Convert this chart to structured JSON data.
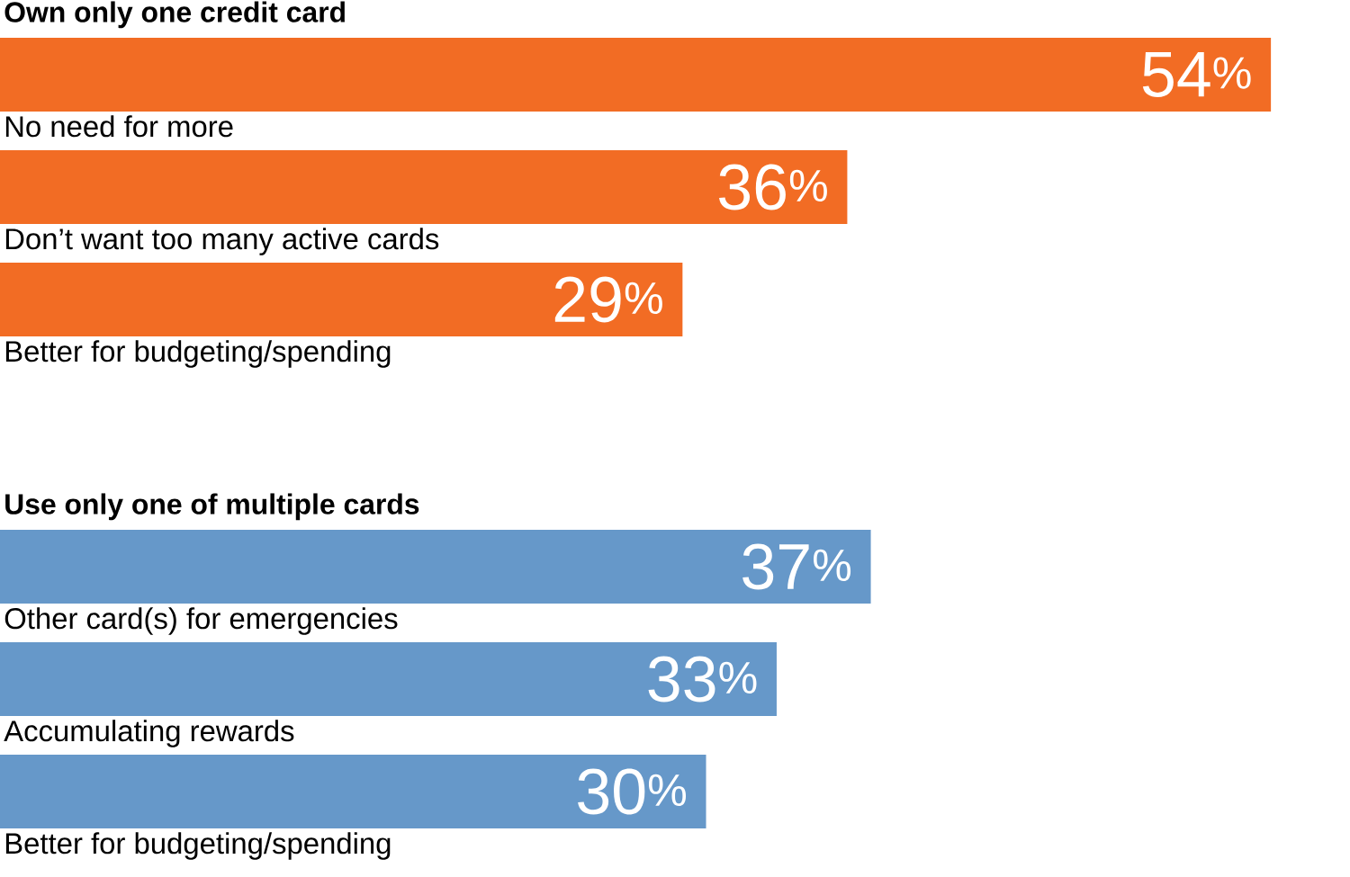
{
  "chart_data": [
    {
      "type": "bar",
      "orientation": "horizontal",
      "title": "Own only one credit card",
      "categories": [
        "No need for more",
        "Don’t want too many active cards",
        "Better for budgeting/spending"
      ],
      "values": [
        54,
        36,
        29
      ],
      "value_labels": [
        "54$^{%}$",
        "36$^{%}$",
        "29$^{%}$"
      ],
      "color": "#f26c24"
    },
    {
      "type": "bar",
      "orientation": "horizontal",
      "title": "Use only one of multiple cards",
      "categories": [
        "Other card(s) for emergencies",
        "Accumulating rewards",
        "Better for budgeting/spending"
      ],
      "values": [
        37,
        33,
        30
      ],
      "value_labels": [
        "37$^{%}$",
        "33$^{%}$",
        "30$^{%}$"
      ],
      "color": "#6698c9"
    }
  ]
}
